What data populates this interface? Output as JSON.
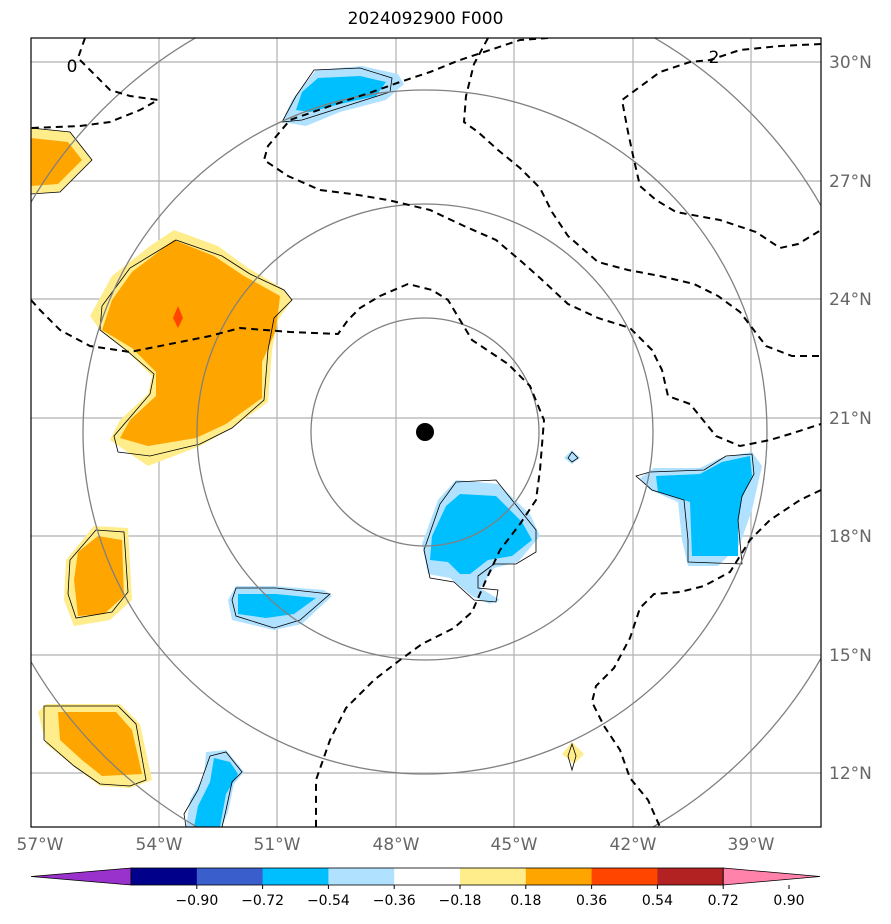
{
  "title": "2024092900 F000",
  "lat_labels": [
    "30°N",
    "27°N",
    "24°N",
    "21°N",
    "18°N",
    "15°N",
    "12°N"
  ],
  "lon_labels": [
    "57°W",
    "54°W",
    "51°W",
    "48°W",
    "45°W",
    "42°W",
    "39°W"
  ],
  "colorbar": {
    "ticks": [
      "−0.90",
      "−0.72",
      "−0.54",
      "−0.36",
      "−0.18",
      "0.18",
      "0.36",
      "0.54",
      "0.72",
      "0.90"
    ],
    "colors": [
      "#9932cc",
      "#00008b",
      "#3a5fcd",
      "#00bfff",
      "#b0e2ff",
      "#ffffff",
      "#ffec8b",
      "#ffa500",
      "#ff4500",
      "#b22222",
      "#ff82ab"
    ]
  },
  "contour_labels": [
    "0",
    "2"
  ],
  "colors": {
    "fill_orange": "#ffa500",
    "fill_yellow": "#ffec8b",
    "fill_cyan": "#00bfff",
    "fill_lightblue": "#b0e2ff",
    "fill_red": "#ff4500",
    "grid": "#b0b0b0",
    "ring": "#808080",
    "center_marker": "#000000"
  }
}
